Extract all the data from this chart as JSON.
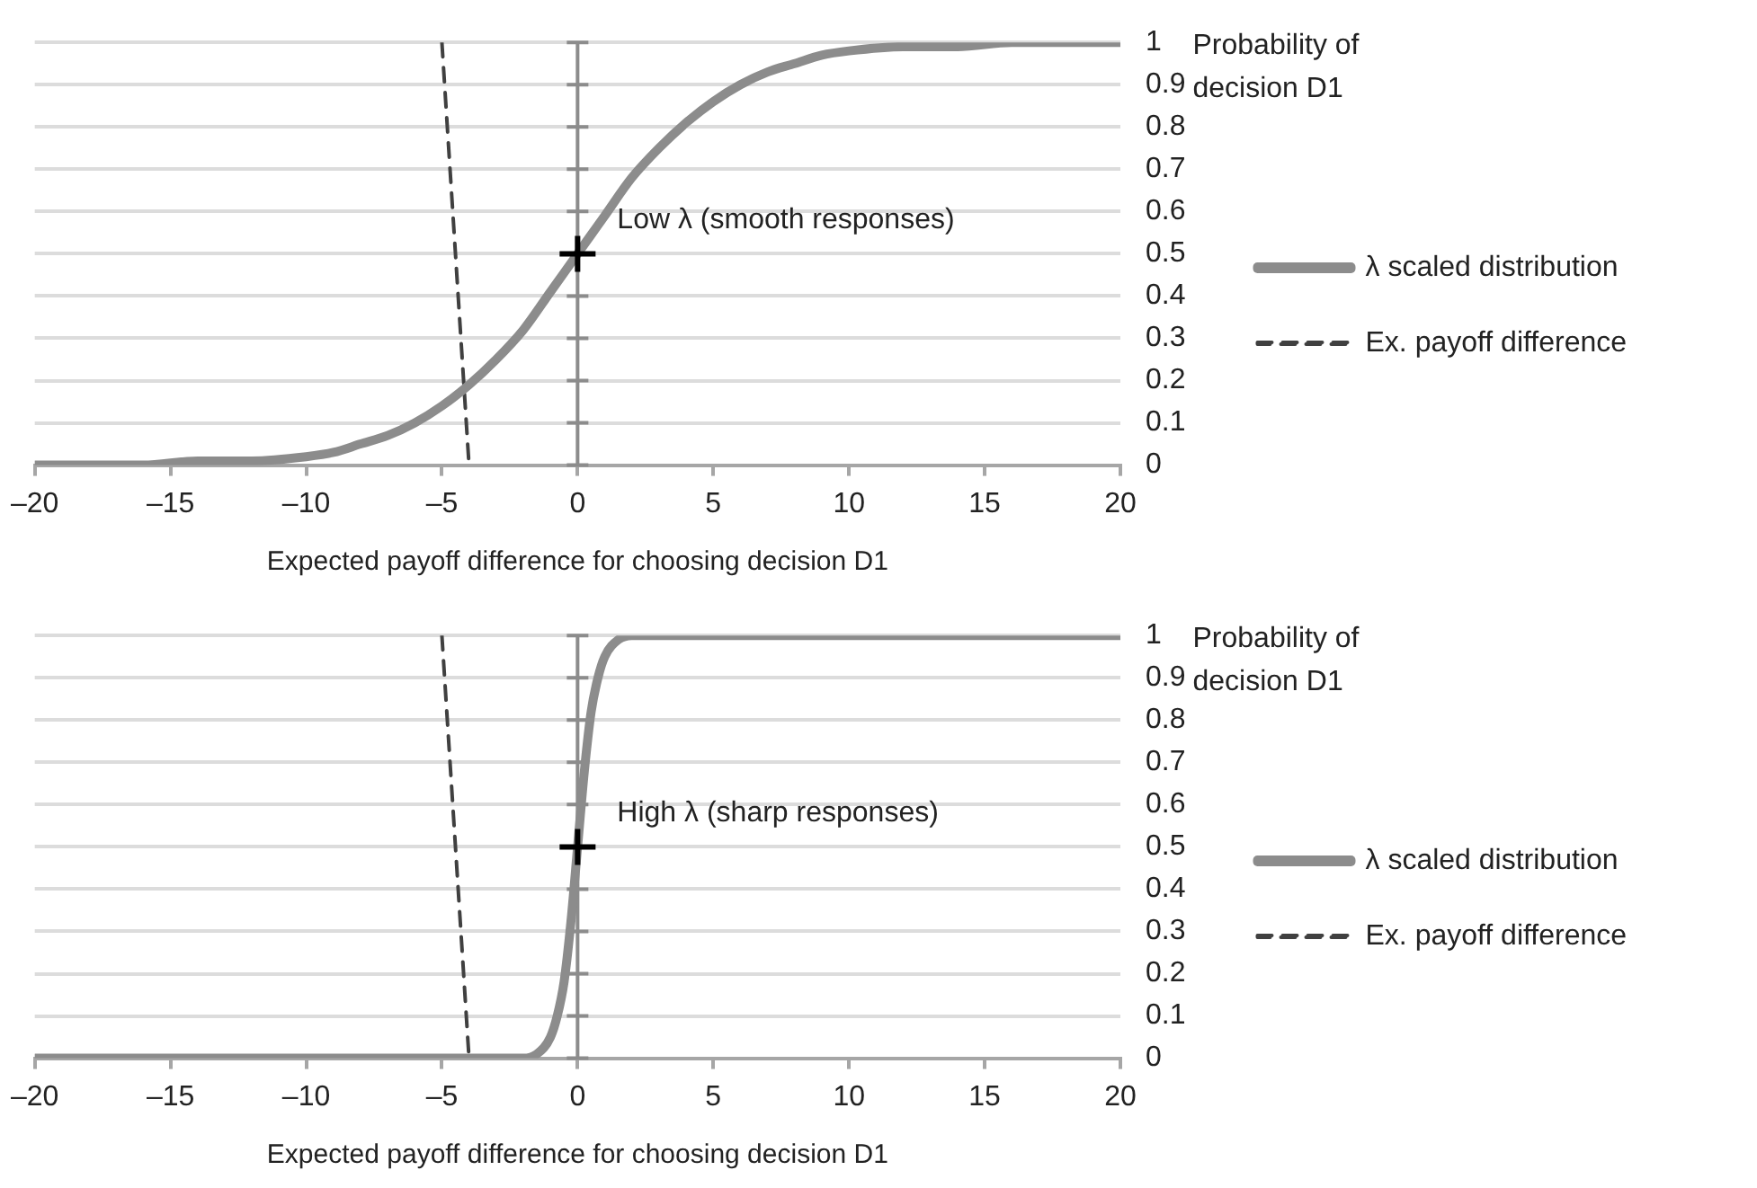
{
  "chart_data": [
    {
      "type": "line",
      "xlabel": "Expected payoff difference for choosing decision D1",
      "ylabel": "Probability of decision D1",
      "xlim": [
        -20,
        20
      ],
      "xticks": [
        {
          "value": -20,
          "label": "–20"
        },
        {
          "value": -15,
          "label": "–15"
        },
        {
          "value": -10,
          "label": "–10"
        },
        {
          "value": -5,
          "label": "–5"
        },
        0,
        5,
        10,
        15,
        20
      ],
      "ylim": [
        0,
        1
      ],
      "yticks": [
        0,
        0.1,
        0.2,
        0.3,
        0.4,
        0.5,
        0.6,
        0.7,
        0.8,
        0.9,
        1
      ],
      "grid": "y",
      "legend": "right",
      "ref_lines": [
        {
          "axis": "x",
          "value": 0,
          "color": "#8c8c8c"
        }
      ],
      "annotations": [
        "Low λ (smooth responses)"
      ],
      "series": [
        {
          "name": "λ scaled distribution",
          "type": "line",
          "color": "#8c8c8c",
          "line_style": "solid",
          "x": [
            -20,
            -18,
            -16,
            -14,
            -12,
            -10,
            -9,
            -8,
            -7,
            -6,
            -5,
            -4,
            -3,
            -2,
            -1,
            0,
            1,
            2,
            3,
            4,
            5,
            6,
            7,
            8,
            9,
            10,
            12,
            14,
            16,
            18,
            20
          ],
          "values": [
            0,
            0,
            0,
            0.01,
            0.01,
            0.02,
            0.03,
            0.05,
            0.07,
            0.1,
            0.14,
            0.19,
            0.25,
            0.32,
            0.41,
            0.5,
            0.59,
            0.68,
            0.75,
            0.81,
            0.86,
            0.9,
            0.93,
            0.95,
            0.97,
            0.98,
            0.99,
            0.99,
            1,
            1,
            1
          ]
        },
        {
          "name": "Ex. payoff difference",
          "type": "line",
          "color": "#404040",
          "line_style": "dashed",
          "x": [
            -5,
            -4
          ],
          "values": [
            1,
            0
          ]
        },
        {
          "type": "scatter",
          "marker": "cross",
          "color": "#000000",
          "x": [
            0
          ],
          "values": [
            0.5
          ]
        }
      ]
    },
    {
      "type": "line",
      "xlabel": "Expected payoff difference for choosing decision D1",
      "ylabel": "Probability of decision D1",
      "xlim": [
        -20,
        20
      ],
      "xticks": [
        {
          "value": -20,
          "label": "–20"
        },
        {
          "value": -15,
          "label": "–15"
        },
        {
          "value": -10,
          "label": "–10"
        },
        {
          "value": -5,
          "label": "–5"
        },
        0,
        5,
        10,
        15,
        20
      ],
      "ylim": [
        0,
        1
      ],
      "yticks": [
        0,
        0.1,
        0.2,
        0.3,
        0.4,
        0.5,
        0.6,
        0.7,
        0.8,
        0.9,
        1
      ],
      "grid": "y",
      "legend": "right",
      "ref_lines": [
        {
          "axis": "x",
          "value": 0,
          "color": "#8c8c8c"
        }
      ],
      "annotations": [
        "High λ (sharp responses)"
      ],
      "series": [
        {
          "name": "λ scaled distribution",
          "type": "line",
          "color": "#8c8c8c",
          "line_style": "solid",
          "x": [
            -20,
            -10,
            -5,
            -2,
            -1.5,
            -1,
            -0.75,
            -0.5,
            -0.25,
            0,
            0.25,
            0.5,
            0.75,
            1,
            1.5,
            2,
            5,
            10,
            20
          ],
          "values": [
            0,
            0,
            0,
            0,
            0.01,
            0.05,
            0.1,
            0.18,
            0.32,
            0.5,
            0.68,
            0.82,
            0.9,
            0.95,
            0.99,
            1,
            1,
            1,
            1
          ]
        },
        {
          "name": "Ex. payoff difference",
          "type": "line",
          "color": "#404040",
          "line_style": "dashed",
          "x": [
            -5,
            -4
          ],
          "values": [
            1,
            0
          ]
        },
        {
          "type": "scatter",
          "marker": "cross",
          "color": "#000000",
          "x": [
            0
          ],
          "values": [
            0.5
          ]
        }
      ]
    }
  ]
}
